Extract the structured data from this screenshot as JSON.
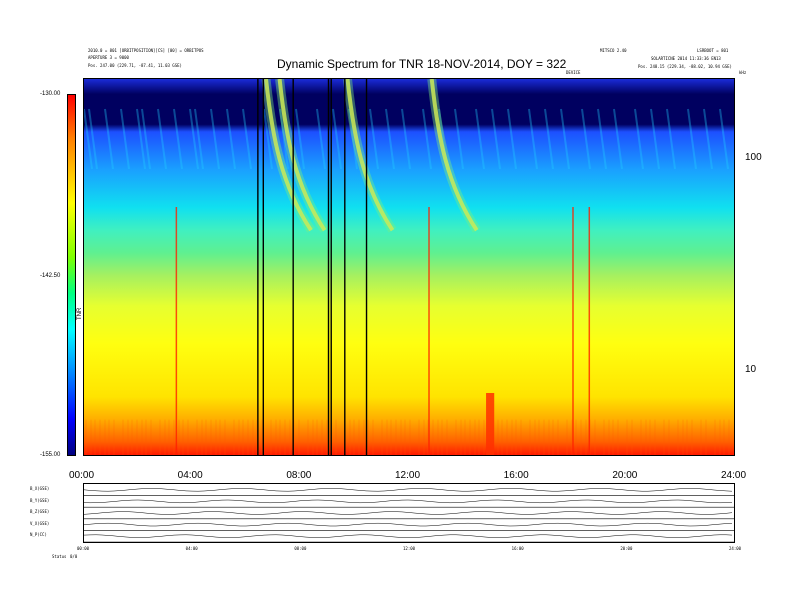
{
  "header": {
    "title": "Dynamic Spectrum for TNR 18-NOV-2014, DOY = 322",
    "left_line1": "2010.0 = 801 [ORBITPOSITION][CS] [00] = ORBITPOS",
    "left_line2": "APERTURE 3 = 9000",
    "left_line3": "Pos. 247.00 (229.71, -87.41, 11.03 GSE)",
    "right_top_a": "MITSCO 2.40",
    "right_top_b": "LSRBOOT = 801",
    "right_line2": "SOLARTICNE 2014 11:33:36 EN13",
    "right_line3": "Pos. 248.15 (229.34, -88.02, 10.94 GSE)",
    "marker_label": "DEVICE",
    "freq_unit_label": "kHz"
  },
  "colorbar": {
    "label": "TNR",
    "ticks": [
      "-130.00",
      "-142.50",
      "-155.00"
    ]
  },
  "chart_data": {
    "type": "heatmap",
    "title": "Dynamic Spectrum for TNR 18-NOV-2014, DOY = 322",
    "x_ticks": [
      "00:00",
      "04:00",
      "08:00",
      "12:00",
      "16:00",
      "20:00",
      "24:00"
    ],
    "x_range_hours": [
      0,
      24
    ],
    "y_scale": "log",
    "y_ticks": [
      100,
      10
    ],
    "y_range_khz": [
      4,
      240
    ],
    "color_range_db": [
      -155.0,
      -130.0
    ],
    "colormap": [
      "#00007f",
      "#0000ff",
      "#007fff",
      "#00ffff",
      "#00ff7f",
      "#7fff00",
      "#ffff00",
      "#ff7f00",
      "#ff0000"
    ],
    "data_gaps_hours": [
      6.4,
      6.6,
      7.7,
      9.0,
      9.1,
      9.6,
      10.4
    ],
    "type_iii_bursts_hours": [
      6.7,
      7.2,
      9.7,
      12.8
    ],
    "low_freq_enhancement_hours": [
      14.8,
      15.1
    ]
  },
  "bottom_panels": {
    "labels": [
      "B_X(GSE)",
      "B_Y(GSE)",
      "B_Z(GSE)",
      "V_X(GSE)",
      "N_P(CC)"
    ],
    "x_ticks": [
      "00:00",
      "04:00",
      "08:00",
      "12:00",
      "16:00",
      "20:00",
      "24:00"
    ],
    "footer_label": "Status",
    "footer_value": "0/0"
  }
}
